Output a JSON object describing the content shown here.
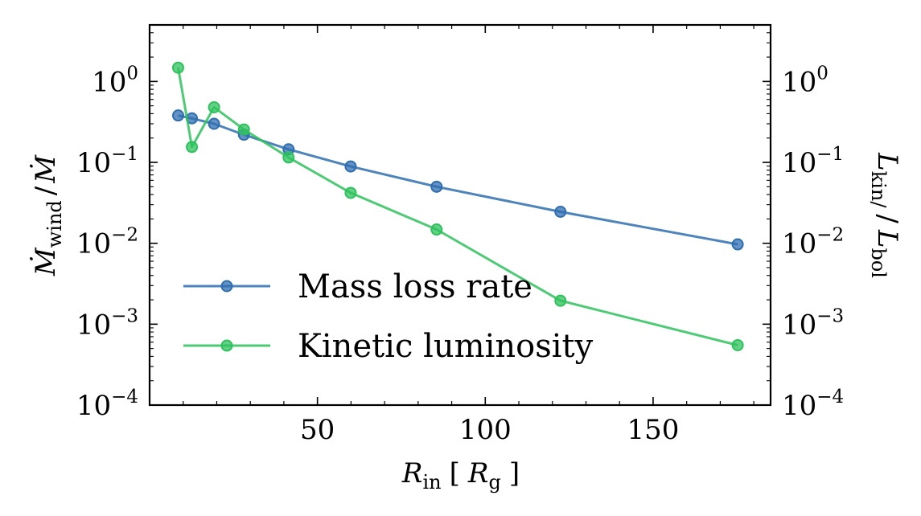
{
  "chart_data": {
    "type": "line",
    "xlabel": {
      "main": "R",
      "sub": "in",
      "bracket_open": "[",
      "unit_main": "R",
      "unit_sub": "g",
      "bracket_close": "]"
    },
    "ylabel_left": {
      "main": "Ṁ",
      "sub": "wind",
      "sep": "/",
      "denominator": "Ṁ"
    },
    "ylabel_right": {
      "main": "L",
      "sub": "kin/",
      "sep": "/",
      "denominator": "L",
      "denominator_sub": "bol"
    },
    "xlim": [
      0,
      185
    ],
    "ylim": [
      0.0001,
      5
    ],
    "yscale": "log",
    "x_ticks": [
      {
        "value": 50,
        "label": "50"
      },
      {
        "value": 100,
        "label": "100"
      },
      {
        "value": 150,
        "label": "150"
      }
    ],
    "y_ticks": [
      {
        "value": 1,
        "base": "10",
        "exp": "0"
      },
      {
        "value": 0.1,
        "base": "10",
        "exp": "−1"
      },
      {
        "value": 0.01,
        "base": "10",
        "exp": "−2"
      },
      {
        "value": 0.001,
        "base": "10",
        "exp": "−3"
      },
      {
        "value": 0.0001,
        "base": "10",
        "exp": "−4"
      }
    ],
    "legend_position": "lower-left",
    "series": [
      {
        "name": "Mass loss rate",
        "color": "#2f6eb0",
        "x": [
          8.5,
          12.6,
          19.2,
          28.1,
          41.4,
          59.9,
          85.5,
          122.4,
          175.2
        ],
        "y": [
          0.38,
          0.35,
          0.3,
          0.22,
          0.145,
          0.089,
          0.05,
          0.0245,
          0.0097
        ]
      },
      {
        "name": "Kinetic luminosity",
        "color": "#2ec25c",
        "x": [
          8.5,
          12.6,
          19.2,
          28.1,
          41.4,
          59.9,
          85.5,
          122.4,
          175.2
        ],
        "y": [
          1.48,
          0.155,
          0.48,
          0.255,
          0.115,
          0.042,
          0.0148,
          0.00195,
          0.00055
        ]
      }
    ]
  }
}
